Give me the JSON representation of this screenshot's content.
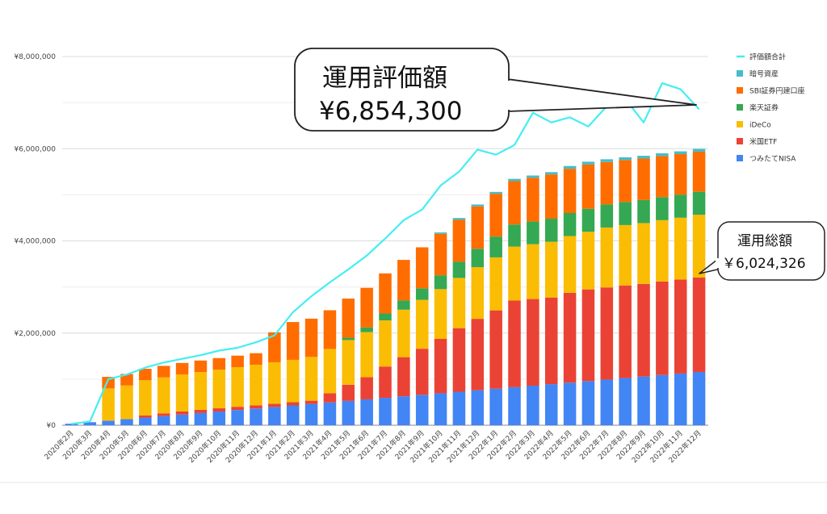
{
  "chart_data": {
    "type": "bar",
    "stacked": true,
    "categories": [
      "2020年2月",
      "2020年3月",
      "2020年4月",
      "2020年5月",
      "2020年6月",
      "2020年7月",
      "2020年8月",
      "2020年9月",
      "2020年10月",
      "2020年11月",
      "2020年12月",
      "2021年1月",
      "2021年2月",
      "2021年3月",
      "2021年4月",
      "2021年5月",
      "2021年6月",
      "2021年7月",
      "2021年8月",
      "2021年9月",
      "2021年10月",
      "2021年11月",
      "2021年12月",
      "2022年1月",
      "2022年2月",
      "2022年3月",
      "2022年4月",
      "2022年5月",
      "2022年6月",
      "2022年7月",
      "2022年8月",
      "2022年9月",
      "2022年10月",
      "2022年11月",
      "2022年12月"
    ],
    "series": [
      {
        "name": "つみたてNISA",
        "color": "#4285f4",
        "values": [
          33000,
          66000,
          99000,
          132000,
          165000,
          198000,
          231000,
          264000,
          297000,
          330000,
          363000,
          396000,
          429000,
          462000,
          495000,
          528000,
          561000,
          594000,
          627000,
          660000,
          693000,
          726000,
          759000,
          792000,
          825000,
          858000,
          891000,
          924000,
          957000,
          990000,
          1023000,
          1056000,
          1089000,
          1122000,
          1155000
        ]
      },
      {
        "name": "米国ETF",
        "color": "#ea4335",
        "values": [
          0,
          0,
          0,
          0,
          50000,
          60000,
          70000,
          70000,
          70000,
          70000,
          70000,
          70000,
          70000,
          70000,
          200000,
          350000,
          480000,
          680000,
          850000,
          1000000,
          1180000,
          1380000,
          1550000,
          1700000,
          1880000,
          1880000,
          1880000,
          1950000,
          1990000,
          2000000,
          2010000,
          2010000,
          2030000,
          2040000,
          2050000
        ]
      },
      {
        "name": "iDeCo",
        "color": "#fbbc04",
        "values": [
          0,
          0,
          700000,
          730000,
          760000,
          780000,
          800000,
          820000,
          840000,
          860000,
          880000,
          900000,
          920000,
          950000,
          960000,
          970000,
          980000,
          1000000,
          1030000,
          1060000,
          1080000,
          1090000,
          1120000,
          1150000,
          1170000,
          1190000,
          1210000,
          1230000,
          1250000,
          1300000,
          1310000,
          1320000,
          1330000,
          1340000,
          1360000
        ]
      },
      {
        "name": "楽天証券",
        "color": "#34a853",
        "values": [
          0,
          0,
          0,
          0,
          0,
          0,
          0,
          0,
          0,
          0,
          0,
          0,
          0,
          0,
          0,
          50000,
          100000,
          150000,
          200000,
          250000,
          300000,
          350000,
          400000,
          450000,
          480000,
          490000,
          500000,
          500000,
          500000,
          500000,
          500000,
          500000,
          500000,
          500000,
          500000
        ]
      },
      {
        "name": "SBI証券円建口座",
        "color": "#ff6d01",
        "values": [
          0,
          0,
          250000,
          250000,
          250000,
          250000,
          250000,
          250000,
          250000,
          250000,
          250000,
          650000,
          820000,
          830000,
          840000,
          850000,
          860000,
          870000,
          880000,
          890000,
          900000,
          910000,
          920000,
          930000,
          940000,
          950000,
          960000,
          960000,
          960000,
          920000,
          910000,
          900000,
          890000,
          880000,
          870000
        ]
      },
      {
        "name": "暗号資産",
        "color": "#46bdc6",
        "values": [
          0,
          0,
          0,
          0,
          0,
          0,
          0,
          0,
          0,
          0,
          0,
          0,
          0,
          0,
          0,
          0,
          0,
          0,
          0,
          0,
          30000,
          40000,
          40000,
          40000,
          50000,
          50000,
          50000,
          60000,
          60000,
          60000,
          60000,
          60000,
          60000,
          60000,
          60000
        ]
      }
    ],
    "line": {
      "name": "評価額合計",
      "color": "#44eef2",
      "values": [
        30000,
        80000,
        1000000,
        1100000,
        1250000,
        1360000,
        1440000,
        1520000,
        1620000,
        1680000,
        1800000,
        1950000,
        2450000,
        2800000,
        3100000,
        3380000,
        3680000,
        4050000,
        4450000,
        4680000,
        5200000,
        5500000,
        5980000,
        5870000,
        6080000,
        6780000,
        6570000,
        6680000,
        6480000,
        6920000,
        7080000,
        6570000,
        7420000,
        7290000,
        6854300
      ]
    },
    "y_ticks": [
      "¥0",
      "¥2,000,000",
      "¥4,000,000",
      "¥6,000,000",
      "¥8,000,000"
    ],
    "ylim": [
      0,
      8000000
    ],
    "grid": true,
    "legend_position": "right"
  },
  "callouts": {
    "valuation_title": "運用評価額",
    "valuation_value": "¥6,854,300",
    "invest_title": "運用総額",
    "invest_value": "￥6,024,326"
  }
}
